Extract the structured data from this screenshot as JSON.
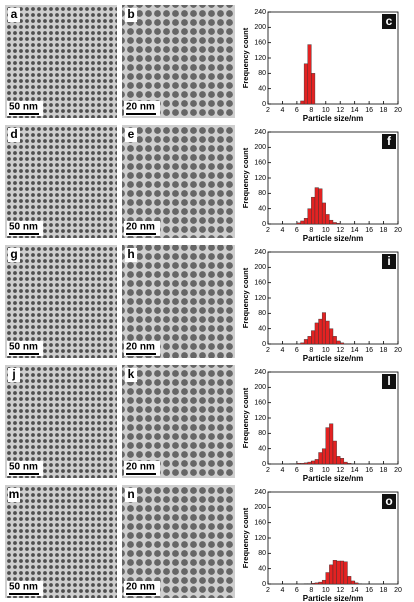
{
  "images": [
    {
      "label": "a",
      "scale_bar": "50 nm"
    },
    {
      "label": "b",
      "scale_bar": "20 nm"
    },
    {
      "label": "d",
      "scale_bar": "50 nm"
    },
    {
      "label": "e",
      "scale_bar": "20 nm"
    },
    {
      "label": "g",
      "scale_bar": "50 nm"
    },
    {
      "label": "h",
      "scale_bar": "20 nm"
    },
    {
      "label": "j",
      "scale_bar": "50 nm"
    },
    {
      "label": "k",
      "scale_bar": "20 nm"
    },
    {
      "label": "m",
      "scale_bar": "50 nm"
    },
    {
      "label": "n",
      "scale_bar": "20 nm"
    }
  ],
  "chart_data": [
    {
      "type": "histogram",
      "panel_label": "c",
      "xlabel": "Particle size/nm",
      "ylabel": "Frequency count",
      "color": "#e32222",
      "bins": [
        6.5,
        7,
        7.5,
        8,
        8.5
      ],
      "values": [
        8,
        105,
        155,
        80
      ],
      "xlim": [
        2,
        20
      ],
      "xticks": [
        2,
        4,
        6,
        8,
        10,
        12,
        14,
        16,
        18,
        20
      ],
      "ylim": [
        0,
        240
      ],
      "yticks": [
        0,
        40,
        80,
        120,
        160,
        200,
        240
      ]
    },
    {
      "type": "histogram",
      "panel_label": "f",
      "xlabel": "Particle size/nm",
      "ylabel": "Frequency count",
      "color": "#e32222",
      "bins": [
        6,
        6.5,
        7,
        7.5,
        8,
        8.5,
        9,
        9.5,
        10,
        10.5,
        11,
        11.5,
        12
      ],
      "values": [
        3,
        8,
        15,
        40,
        70,
        95,
        92,
        55,
        25,
        10,
        4,
        2
      ],
      "xlim": [
        2,
        20
      ],
      "xticks": [
        2,
        4,
        6,
        8,
        10,
        12,
        14,
        16,
        18,
        20
      ],
      "ylim": [
        0,
        240
      ],
      "yticks": [
        0,
        40,
        80,
        120,
        160,
        200,
        240
      ]
    },
    {
      "type": "histogram",
      "panel_label": "i",
      "xlabel": "Particle size/nm",
      "ylabel": "Frequency count",
      "color": "#e32222",
      "bins": [
        6.5,
        7,
        7.5,
        8,
        8.5,
        9,
        9.5,
        10,
        10.5,
        11,
        11.5,
        12,
        12.5
      ],
      "values": [
        3,
        12,
        20,
        35,
        55,
        65,
        82,
        60,
        40,
        20,
        8,
        3
      ],
      "xlim": [
        2,
        20
      ],
      "xticks": [
        2,
        4,
        6,
        8,
        10,
        12,
        14,
        16,
        18,
        20
      ],
      "ylim": [
        0,
        240
      ],
      "yticks": [
        0,
        40,
        80,
        120,
        160,
        200,
        240
      ]
    },
    {
      "type": "histogram",
      "panel_label": "l",
      "xlabel": "Particle size/nm",
      "ylabel": "Frequency count",
      "color": "#e32222",
      "bins": [
        5,
        5.5,
        6,
        6.5,
        7,
        7.5,
        8,
        8.5,
        9,
        9.5,
        10,
        10.5,
        11,
        11.5,
        12,
        12.5,
        13,
        13.5,
        14
      ],
      "values": [
        1,
        1,
        2,
        2,
        3,
        5,
        8,
        12,
        30,
        40,
        95,
        105,
        60,
        20,
        15,
        5,
        2,
        1
      ],
      "xlim": [
        2,
        20
      ],
      "xticks": [
        2,
        4,
        6,
        8,
        10,
        12,
        14,
        16,
        18,
        20
      ],
      "ylim": [
        0,
        240
      ],
      "yticks": [
        0,
        40,
        80,
        120,
        160,
        200,
        240
      ]
    },
    {
      "type": "histogram",
      "panel_label": "o",
      "xlabel": "Particle size/nm",
      "ylabel": "Frequency count",
      "color": "#e32222",
      "bins": [
        7,
        7.5,
        8,
        8.5,
        9,
        9.5,
        10,
        10.5,
        11,
        11.5,
        12,
        12.5,
        13,
        13.5,
        14,
        14.5,
        15
      ],
      "values": [
        1,
        1,
        2,
        3,
        5,
        10,
        30,
        50,
        62,
        60,
        60,
        58,
        20,
        8,
        3,
        1
      ],
      "xlim": [
        2,
        20
      ],
      "xticks": [
        2,
        4,
        6,
        8,
        10,
        12,
        14,
        16,
        18,
        20
      ],
      "ylim": [
        0,
        240
      ],
      "yticks": [
        0,
        40,
        80,
        120,
        160,
        200,
        240
      ]
    }
  ]
}
